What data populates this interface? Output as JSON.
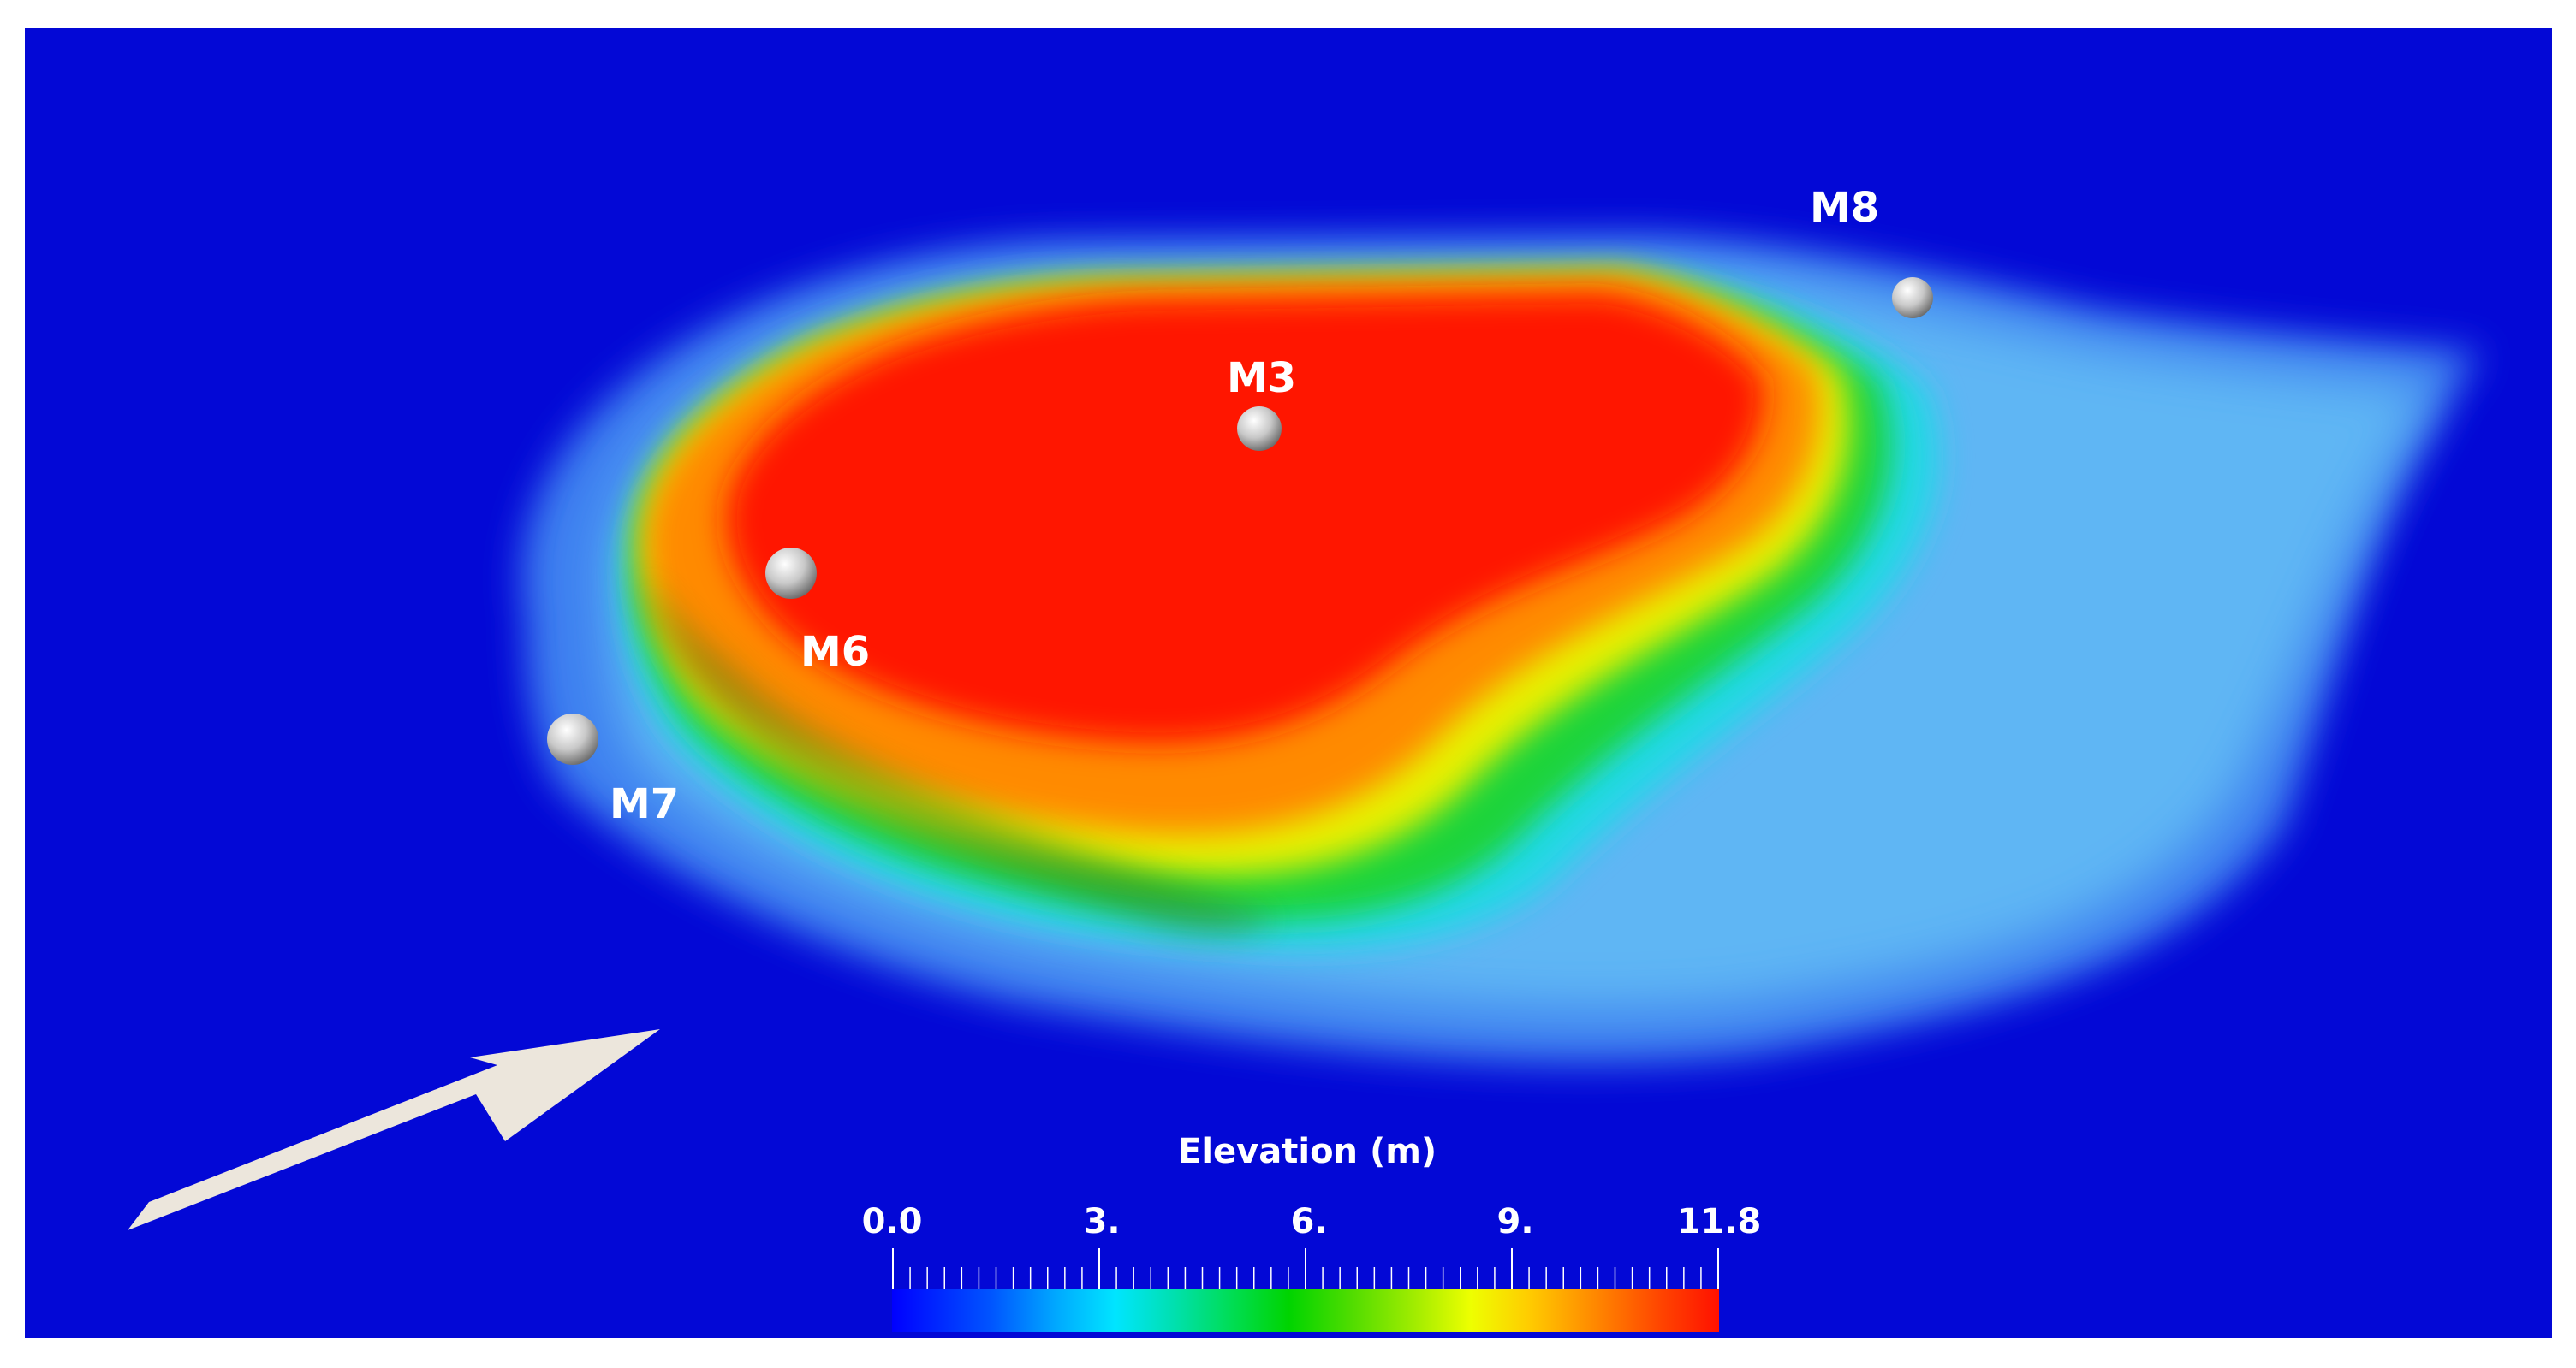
{
  "markers": [
    {
      "label": "M8"
    },
    {
      "label": "M3"
    },
    {
      "label": "M6"
    },
    {
      "label": "M7"
    }
  ],
  "legend": {
    "title": "Elevation (m)",
    "ticks": [
      "0.0",
      "3.",
      "6.",
      "9.",
      "11.8"
    ],
    "min": 0.0,
    "max": 11.8
  },
  "colors": {
    "background": "#0308d6",
    "arrow": "#ece6dc",
    "high": "#ff1100",
    "low": "#0000ff"
  },
  "icons": {
    "direction": "flow-direction-arrow-icon",
    "marker": "sphere-marker-icon"
  }
}
